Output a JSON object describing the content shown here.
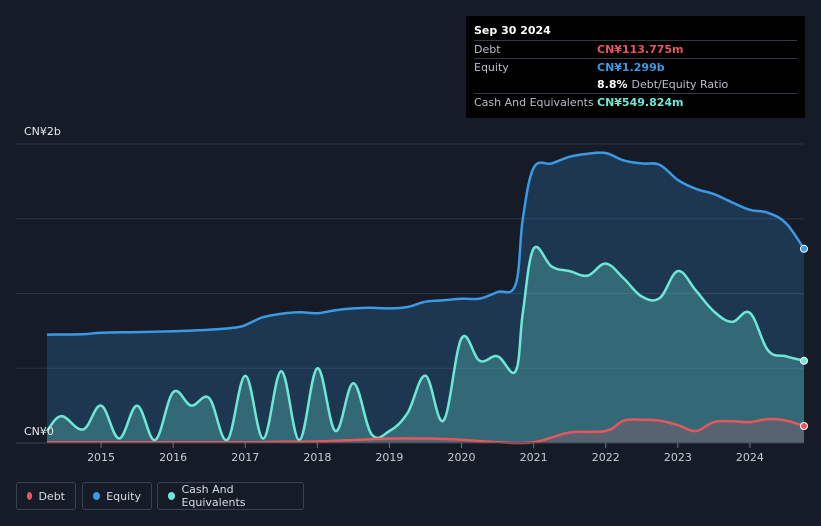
{
  "tooltip": {
    "date": "Sep 30 2024",
    "debt_label": "Debt",
    "debt_value": "CN¥113.775m",
    "equity_label": "Equity",
    "equity_value": "CN¥1.299b",
    "ratio_value": "8.8%",
    "ratio_label": "Debt/Equity Ratio",
    "cash_label": "Cash And Equivalents",
    "cash_value": "CN¥549.824m"
  },
  "colors": {
    "debt": "#e5575d",
    "equity": "#3a9ae6",
    "cash": "#6ee8d6",
    "background": "#151b27"
  },
  "legend": [
    {
      "key": "debt",
      "label": "Debt"
    },
    {
      "key": "equity",
      "label": "Equity"
    },
    {
      "key": "cash",
      "label": "Cash And Equivalents"
    }
  ],
  "chart_data": {
    "type": "area",
    "xlim": [
      2014.25,
      2024.75
    ],
    "ylim": [
      0,
      2000
    ],
    "y_unit": "CN¥ millions",
    "x_ticks": [
      2015,
      2016,
      2017,
      2018,
      2019,
      2020,
      2021,
      2022,
      2023,
      2024
    ],
    "y_tick_labels": [
      {
        "value": 2000,
        "label": "CN¥2b"
      },
      {
        "value": 0,
        "label": "CN¥0"
      }
    ],
    "grid": true,
    "legend_position": "bottom-left",
    "series": [
      {
        "key": "equity",
        "name": "Equity",
        "points": [
          [
            2014.25,
            725
          ],
          [
            2014.75,
            728
          ],
          [
            2015,
            738
          ],
          [
            2015.5,
            742
          ],
          [
            2016,
            748
          ],
          [
            2016.5,
            758
          ],
          [
            2016.9,
            775
          ],
          [
            2017.05,
            800
          ],
          [
            2017.25,
            842
          ],
          [
            2017.5,
            865
          ],
          [
            2017.75,
            875
          ],
          [
            2018,
            868
          ],
          [
            2018.25,
            888
          ],
          [
            2018.5,
            900
          ],
          [
            2018.75,
            905
          ],
          [
            2019,
            900
          ],
          [
            2019.25,
            910
          ],
          [
            2019.5,
            945
          ],
          [
            2019.75,
            955
          ],
          [
            2020,
            965
          ],
          [
            2020.25,
            966
          ],
          [
            2020.5,
            1010
          ],
          [
            2020.75,
            1060
          ],
          [
            2020.85,
            1500
          ],
          [
            2021,
            1840
          ],
          [
            2021.25,
            1870
          ],
          [
            2021.5,
            1915
          ],
          [
            2021.75,
            1935
          ],
          [
            2022,
            1940
          ],
          [
            2022.25,
            1890
          ],
          [
            2022.5,
            1870
          ],
          [
            2022.75,
            1860
          ],
          [
            2023,
            1760
          ],
          [
            2023.25,
            1700
          ],
          [
            2023.5,
            1665
          ],
          [
            2023.75,
            1610
          ],
          [
            2024,
            1560
          ],
          [
            2024.25,
            1540
          ],
          [
            2024.5,
            1470
          ],
          [
            2024.75,
            1299
          ]
        ]
      },
      {
        "key": "cash",
        "name": "Cash And Equivalents",
        "points": [
          [
            2014.25,
            80
          ],
          [
            2014.45,
            180
          ],
          [
            2014.75,
            90
          ],
          [
            2015,
            250
          ],
          [
            2015.25,
            30
          ],
          [
            2015.5,
            250
          ],
          [
            2015.75,
            20
          ],
          [
            2016,
            340
          ],
          [
            2016.25,
            250
          ],
          [
            2016.5,
            300
          ],
          [
            2016.75,
            20
          ],
          [
            2017,
            450
          ],
          [
            2017.25,
            30
          ],
          [
            2017.5,
            480
          ],
          [
            2017.75,
            20
          ],
          [
            2018,
            500
          ],
          [
            2018.25,
            80
          ],
          [
            2018.5,
            400
          ],
          [
            2018.75,
            60
          ],
          [
            2019,
            80
          ],
          [
            2019.25,
            200
          ],
          [
            2019.5,
            450
          ],
          [
            2019.75,
            150
          ],
          [
            2020,
            700
          ],
          [
            2020.25,
            550
          ],
          [
            2020.5,
            580
          ],
          [
            2020.75,
            480
          ],
          [
            2020.85,
            870
          ],
          [
            2021,
            1300
          ],
          [
            2021.25,
            1180
          ],
          [
            2021.5,
            1150
          ],
          [
            2021.75,
            1120
          ],
          [
            2022,
            1200
          ],
          [
            2022.25,
            1100
          ],
          [
            2022.5,
            980
          ],
          [
            2022.75,
            970
          ],
          [
            2023,
            1150
          ],
          [
            2023.25,
            1020
          ],
          [
            2023.5,
            880
          ],
          [
            2023.75,
            810
          ],
          [
            2024,
            870
          ],
          [
            2024.25,
            620
          ],
          [
            2024.5,
            580
          ],
          [
            2024.75,
            549.824
          ]
        ]
      },
      {
        "key": "debt",
        "name": "Debt",
        "points": [
          [
            2014.25,
            5
          ],
          [
            2015,
            5
          ],
          [
            2016,
            5
          ],
          [
            2017,
            5
          ],
          [
            2017.5,
            8
          ],
          [
            2018,
            10
          ],
          [
            2018.5,
            20
          ],
          [
            2019,
            30
          ],
          [
            2019.5,
            30
          ],
          [
            2020,
            22
          ],
          [
            2020.5,
            5
          ],
          [
            2021,
            5
          ],
          [
            2021.5,
            70
          ],
          [
            2022,
            80
          ],
          [
            2022.25,
            150
          ],
          [
            2022.5,
            155
          ],
          [
            2022.75,
            150
          ],
          [
            2023,
            120
          ],
          [
            2023.25,
            80
          ],
          [
            2023.5,
            140
          ],
          [
            2023.75,
            145
          ],
          [
            2024,
            140
          ],
          [
            2024.25,
            160
          ],
          [
            2024.5,
            150
          ],
          [
            2024.75,
            113.775
          ]
        ]
      }
    ]
  }
}
